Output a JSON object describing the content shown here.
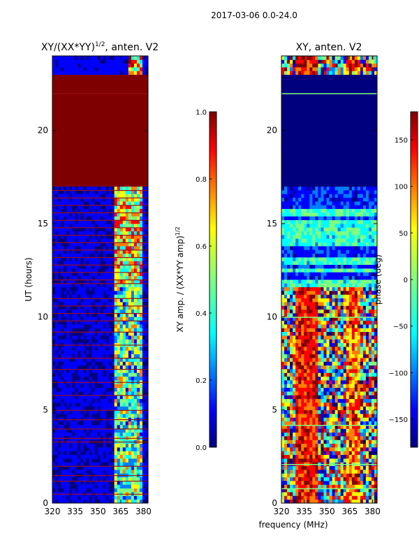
{
  "suptitle": "2017-03-06 0.0-24.0",
  "colors": {
    "jet": [
      "#00007f",
      "#0000ff",
      "#007fff",
      "#00ffff",
      "#7fff7f",
      "#ffff00",
      "#ff7f00",
      "#ff0000",
      "#7f0000"
    ]
  },
  "chart_data": [
    {
      "type": "heatmap",
      "title_prefix": "XY/(XX*YY)",
      "title_sup": "1/2",
      "title_suffix": ", anten. V2",
      "xlabel": "",
      "ylabel": "UT (hours)",
      "xlim": [
        320,
        383
      ],
      "ylim": [
        0,
        24
      ],
      "x_ticks": [
        "320",
        "335",
        "350",
        "365",
        "380"
      ],
      "y_ticks": [
        "0",
        "5",
        "10",
        "15",
        "20"
      ],
      "colorbar": {
        "label_prefix": "XY amp. / (XX*YY amp)",
        "label_sup": "1/2",
        "range": [
          0.0,
          1.0
        ],
        "ticks": [
          "0.0",
          "0.2",
          "0.4",
          "0.6",
          "0.8",
          "1.0"
        ]
      },
      "bands": [
        {
          "y": [
            0,
            11.7
          ],
          "low_freq_value": 0.05,
          "high_freq_range": [
            360,
            380
          ],
          "high_freq_value": 0.45
        },
        {
          "y": [
            11.7,
            17.1
          ],
          "low_freq_value": 0.05,
          "high_freq_range": [
            360,
            380
          ],
          "high_freq_value": 0.6,
          "striped": true
        },
        {
          "y": [
            17.1,
            23.0
          ],
          "value": 1.0
        },
        {
          "y": [
            23.0,
            24.0
          ],
          "low_freq_value": 0.05,
          "high_freq_range": [
            370,
            380
          ],
          "high_freq_value": 0.7
        }
      ]
    },
    {
      "type": "heatmap",
      "title": "XY, anten. V2",
      "xlabel": "frequency (MHz)",
      "ylabel": "",
      "xlim": [
        320,
        383
      ],
      "ylim": [
        0,
        24
      ],
      "x_ticks": [
        "320",
        "335",
        "350",
        "365",
        "380"
      ],
      "y_ticks": [
        "0",
        "5",
        "10",
        "15",
        "20"
      ],
      "colorbar": {
        "label": "phase (deg)",
        "range": [
          -180,
          180
        ],
        "ticks": [
          "−150",
          "−100",
          "−50",
          "0",
          "50",
          "100",
          "150"
        ]
      },
      "bands": [
        {
          "y": [
            0,
            11.7
          ],
          "value": "mixed"
        },
        {
          "y": [
            11.7,
            17.1
          ],
          "value": "striped"
        },
        {
          "y": [
            17.1,
            23.0
          ],
          "value": -180
        },
        {
          "y": [
            23.0,
            24.0
          ],
          "value": "mixed"
        }
      ]
    }
  ]
}
